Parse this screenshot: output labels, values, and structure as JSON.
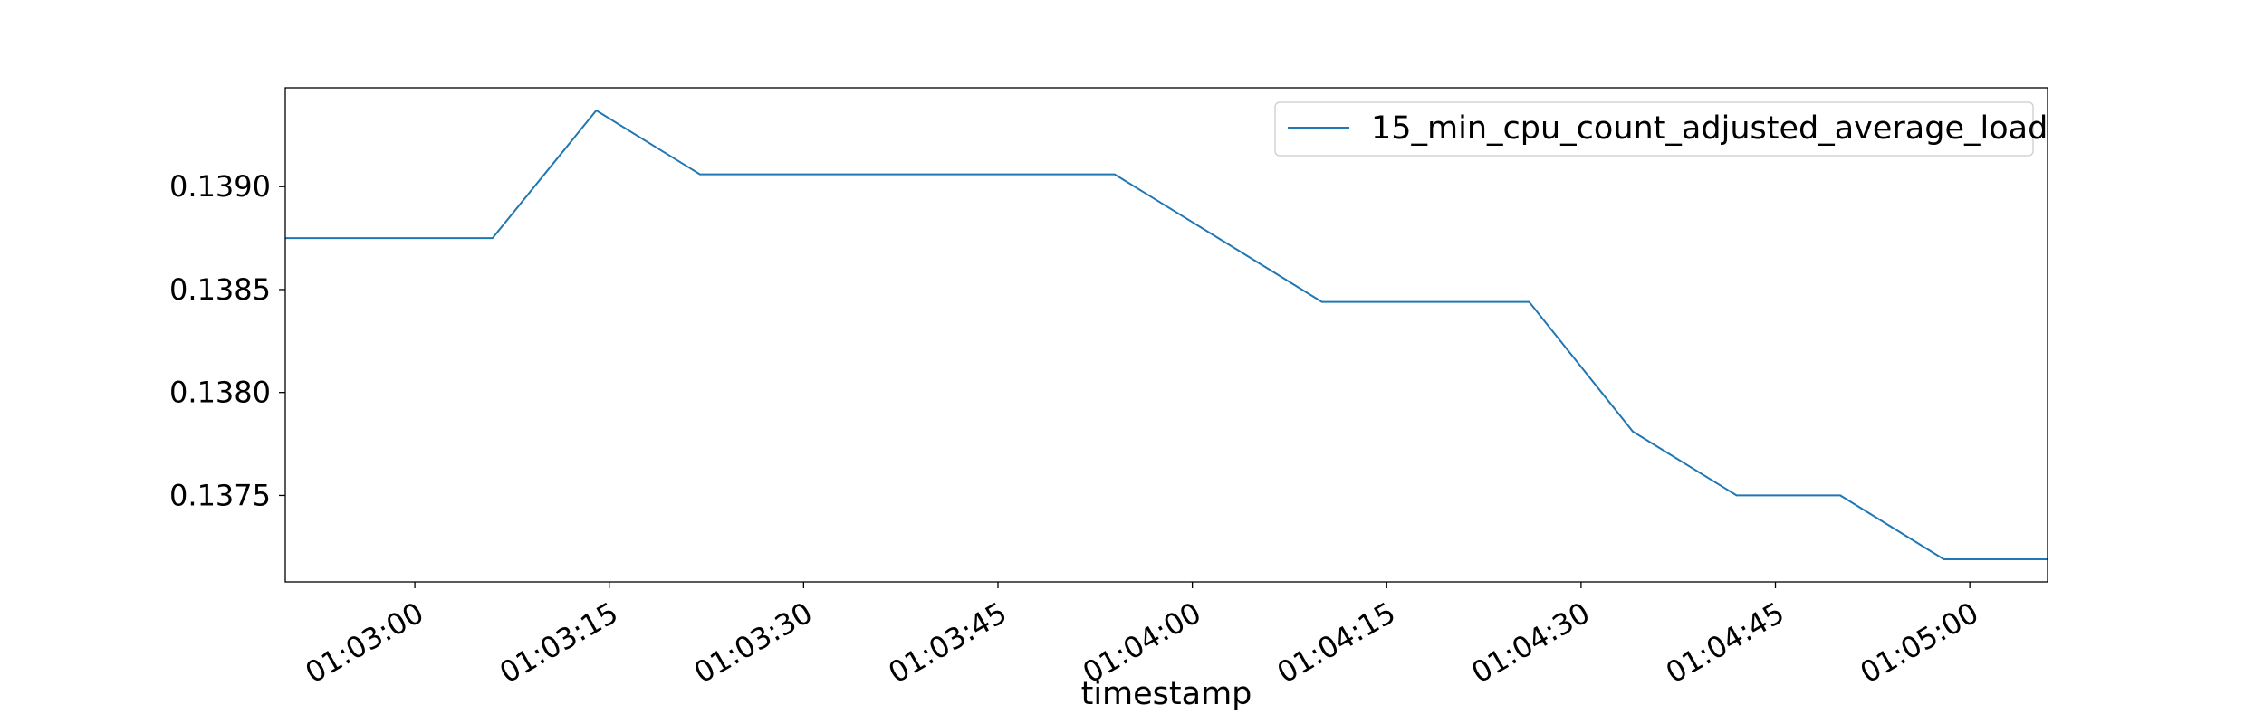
{
  "chart_data": {
    "type": "line",
    "xlabel": "timestamp",
    "ylabel": "",
    "title": "",
    "x_ticks": [
      "01:03:00",
      "01:03:15",
      "01:03:30",
      "01:03:45",
      "01:04:00",
      "01:04:15",
      "01:04:30",
      "01:04:45",
      "01:05:00"
    ],
    "x_range": [
      "01:02:50",
      "01:05:06"
    ],
    "y_ticks": [
      "0.1375",
      "0.1380",
      "0.1385",
      "0.1390"
    ],
    "ylim": [
      0.13708,
      0.13948
    ],
    "legend": "top-right",
    "grid": false,
    "series": [
      {
        "name": "15_min_cpu_count_adjusted_average_load",
        "color": "#1f77b4",
        "x": [
          "01:02:50",
          "01:03:06",
          "01:03:14",
          "01:03:22",
          "01:03:38",
          "01:03:54",
          "01:04:10",
          "01:04:26",
          "01:04:34",
          "01:04:42",
          "01:04:50",
          "01:04:58",
          "01:05:06"
        ],
        "y": [
          0.13875,
          0.13875,
          0.13937,
          0.13906,
          0.13906,
          0.13906,
          0.13844,
          0.13844,
          0.13781,
          0.1375,
          0.1375,
          0.13719,
          0.13719
        ]
      }
    ]
  }
}
